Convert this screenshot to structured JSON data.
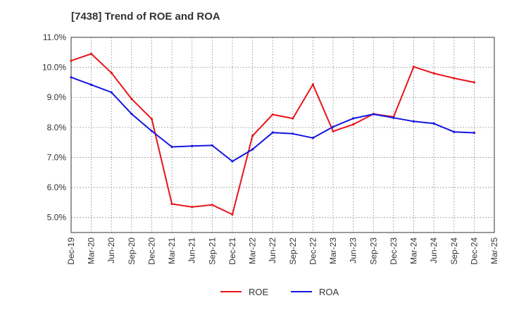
{
  "chart_data": {
    "type": "line",
    "title": "[7438]  Trend of ROE and ROA",
    "xlabel": "",
    "ylabel": "",
    "x": [
      "Dec-19",
      "Mar-20",
      "Jun-20",
      "Sep-20",
      "Dec-20",
      "Mar-21",
      "Jun-21",
      "Sep-21",
      "Dec-21",
      "Mar-22",
      "Jun-22",
      "Sep-22",
      "Dec-22",
      "Mar-23",
      "Jun-23",
      "Sep-23",
      "Dec-23",
      "Mar-24",
      "Jun-24",
      "Sep-24",
      "Dec-24",
      "Mar-25"
    ],
    "ylim": [
      4.5,
      11.0
    ],
    "yticks": [
      5.0,
      6.0,
      7.0,
      8.0,
      9.0,
      10.0,
      11.0
    ],
    "ytick_labels": [
      "5.0%",
      "6.0%",
      "7.0%",
      "8.0%",
      "9.0%",
      "10.0%",
      "11.0%"
    ],
    "grid": "dashed, both axes",
    "legend_position": "bottom",
    "series": [
      {
        "name": "ROE",
        "color": "#e8141b",
        "values": [
          10.22,
          10.45,
          9.82,
          8.95,
          8.28,
          5.45,
          5.35,
          5.42,
          5.1,
          7.72,
          8.43,
          8.3,
          9.43,
          7.87,
          8.1,
          8.45,
          8.35,
          10.02,
          9.8,
          9.64,
          9.5,
          null
        ]
      },
      {
        "name": "ROA",
        "color": "#1414e0",
        "values": [
          9.67,
          9.42,
          9.17,
          8.45,
          7.88,
          7.35,
          7.38,
          7.4,
          6.87,
          7.27,
          7.83,
          7.79,
          7.65,
          8.02,
          8.3,
          8.44,
          8.32,
          8.2,
          8.13,
          7.85,
          7.82,
          null
        ]
      }
    ]
  }
}
